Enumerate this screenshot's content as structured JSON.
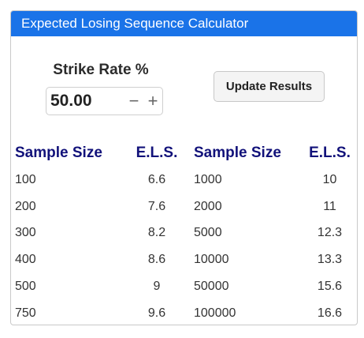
{
  "panel": {
    "title": "Expected Losing Sequence Calculator"
  },
  "controls": {
    "strike_label": "Strike Rate %",
    "strike_value": "50.00",
    "decrement_symbol": "−",
    "increment_symbol": "+",
    "update_label": "Update Results"
  },
  "table": {
    "headers": [
      "Sample Size",
      "E.L.S.",
      "Sample Size",
      "E.L.S."
    ],
    "rows": [
      [
        "100",
        "6.6",
        "1000",
        "10"
      ],
      [
        "200",
        "7.6",
        "2000",
        "11"
      ],
      [
        "300",
        "8.2",
        "5000",
        "12.3"
      ],
      [
        "400",
        "8.6",
        "10000",
        "13.3"
      ],
      [
        "500",
        "9",
        "50000",
        "15.6"
      ],
      [
        "750",
        "9.6",
        "100000",
        "16.6"
      ]
    ]
  },
  "colors": {
    "header_bg": "#1a73e8",
    "table_header_text": "#12127a"
  }
}
